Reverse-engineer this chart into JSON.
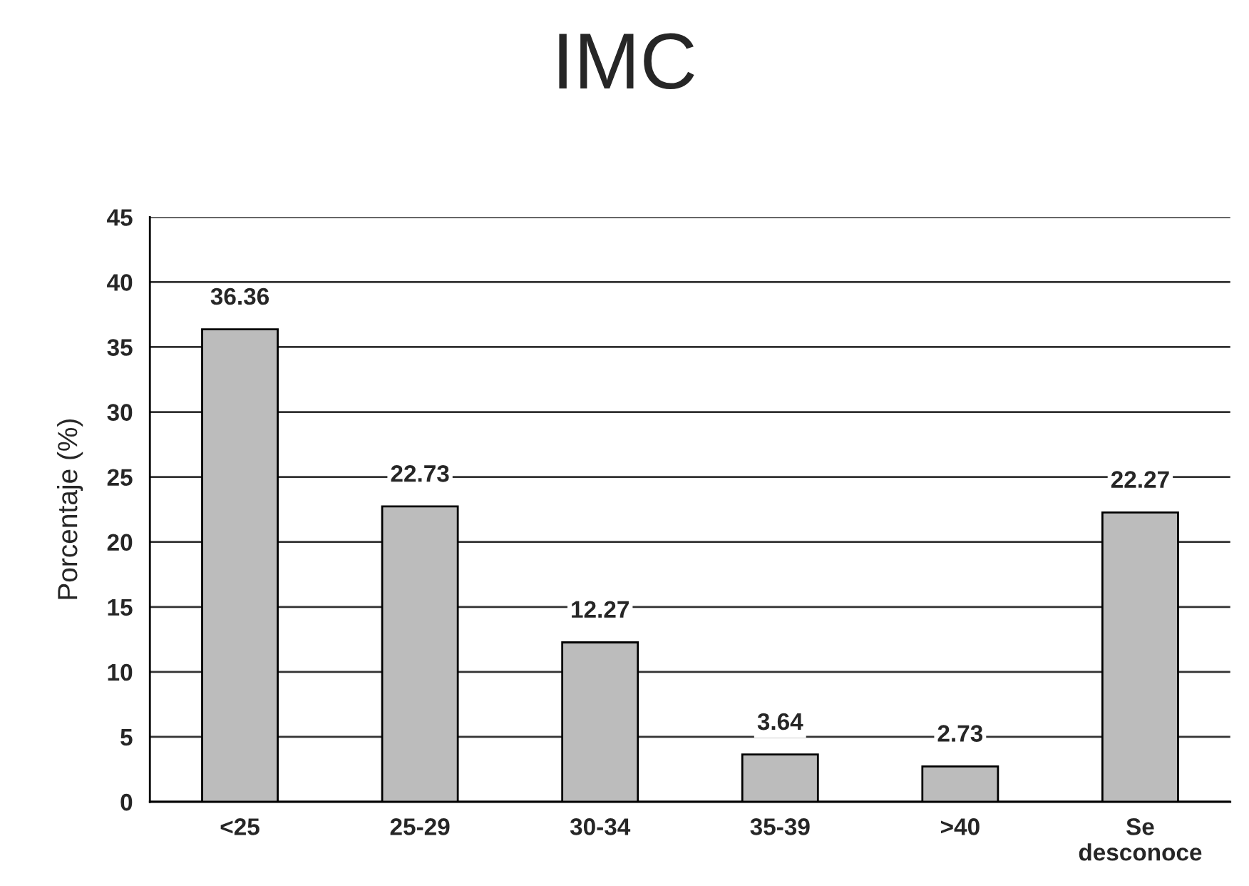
{
  "chart_data": {
    "type": "bar",
    "title": "IMC",
    "ylabel": "Porcentaje (%)",
    "categories": [
      "<25",
      "25-29",
      "30-34",
      "35-39",
      ">40",
      "Se\ndesconoce"
    ],
    "values": [
      36.36,
      22.73,
      12.27,
      3.64,
      2.73,
      22.27
    ],
    "color": "#bcbcbc",
    "ylim": [
      0,
      45
    ],
    "yticks": [
      0,
      5,
      10,
      15,
      20,
      25,
      30,
      35,
      40,
      45
    ],
    "grid": "y",
    "data_labels": true
  }
}
